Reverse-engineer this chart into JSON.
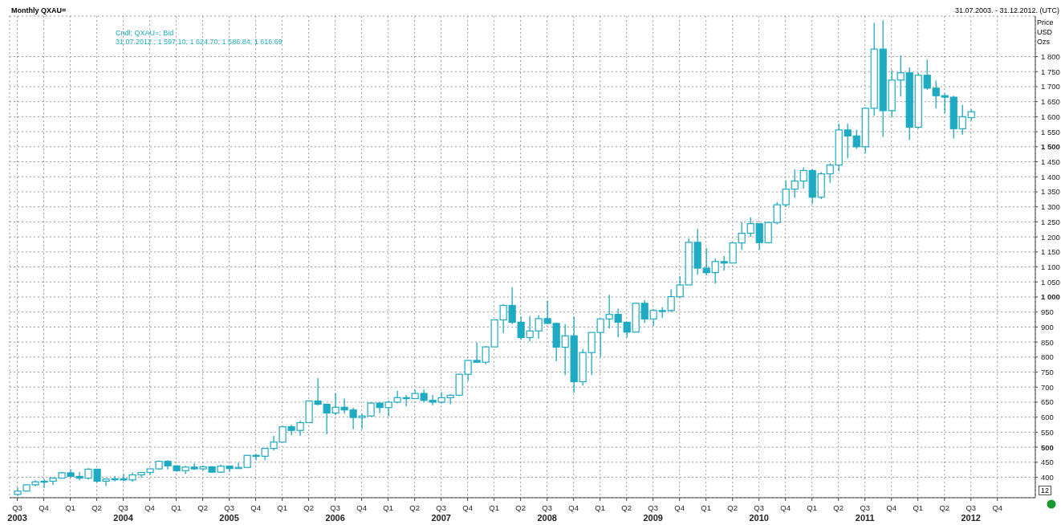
{
  "chart_data": {
    "type": "candlestick",
    "title": "Monthly QXAU=",
    "subtitle": "31.07.2003. - 31.12.2012. (UTC)",
    "ylabel": "Price\nUSD\nOzs",
    "annotations": [
      "Cndl; QXAU=; Bid",
      "31.07.2012 ; 1 597.10; 1 624.70; 1 586.84; 1 616.69",
      "12"
    ],
    "color": "#1eaac2",
    "grid": true,
    "x": [
      "2003-07",
      "2003-08",
      "2003-09",
      "2003-10",
      "2003-11",
      "2003-12",
      "2004-01",
      "2004-02",
      "2004-03",
      "2004-04",
      "2004-05",
      "2004-06",
      "2004-07",
      "2004-08",
      "2004-09",
      "2004-10",
      "2004-11",
      "2004-12",
      "2005-01",
      "2005-02",
      "2005-03",
      "2005-04",
      "2005-05",
      "2005-06",
      "2005-07",
      "2005-08",
      "2005-09",
      "2005-10",
      "2005-11",
      "2005-12",
      "2006-01",
      "2006-02",
      "2006-03",
      "2006-04",
      "2006-05",
      "2006-06",
      "2006-07",
      "2006-08",
      "2006-09",
      "2006-10",
      "2006-11",
      "2006-12",
      "2007-01",
      "2007-02",
      "2007-03",
      "2007-04",
      "2007-05",
      "2007-06",
      "2007-07",
      "2007-08",
      "2007-09",
      "2007-10",
      "2007-11",
      "2007-12",
      "2008-01",
      "2008-02",
      "2008-03",
      "2008-04",
      "2008-05",
      "2008-06",
      "2008-07",
      "2008-08",
      "2008-09",
      "2008-10",
      "2008-11",
      "2008-12",
      "2009-01",
      "2009-02",
      "2009-03",
      "2009-04",
      "2009-05",
      "2009-06",
      "2009-07",
      "2009-08",
      "2009-09",
      "2009-10",
      "2009-11",
      "2009-12",
      "2010-01",
      "2010-02",
      "2010-03",
      "2010-04",
      "2010-05",
      "2010-06",
      "2010-07",
      "2010-08",
      "2010-09",
      "2010-10",
      "2010-11",
      "2010-12",
      "2011-01",
      "2011-02",
      "2011-03",
      "2011-04",
      "2011-05",
      "2011-06",
      "2011-07",
      "2011-08",
      "2011-09",
      "2011-10",
      "2011-11",
      "2011-12",
      "2012-01",
      "2012-02",
      "2012-03",
      "2012-04",
      "2012-05",
      "2012-06",
      "2012-07"
    ],
    "ohlc": [
      [
        343,
        366,
        338,
        354
      ],
      [
        354,
        376,
        354,
        375
      ],
      [
        375,
        390,
        370,
        385
      ],
      [
        385,
        395,
        365,
        387
      ],
      [
        387,
        400,
        375,
        397
      ],
      [
        397,
        418,
        397,
        415
      ],
      [
        415,
        427,
        399,
        403
      ],
      [
        403,
        418,
        390,
        397
      ],
      [
        397,
        430,
        392,
        427
      ],
      [
        427,
        428,
        382,
        387
      ],
      [
        387,
        397,
        371,
        394
      ],
      [
        394,
        404,
        386,
        395
      ],
      [
        395,
        410,
        387,
        391
      ],
      [
        391,
        416,
        385,
        408
      ],
      [
        408,
        417,
        398,
        416
      ],
      [
        416,
        429,
        409,
        428
      ],
      [
        428,
        456,
        425,
        453
      ],
      [
        453,
        457,
        426,
        438
      ],
      [
        438,
        440,
        418,
        422
      ],
      [
        422,
        438,
        411,
        434
      ],
      [
        434,
        447,
        424,
        428
      ],
      [
        428,
        438,
        422,
        435
      ],
      [
        435,
        436,
        415,
        417
      ],
      [
        417,
        442,
        414,
        437
      ],
      [
        437,
        438,
        418,
        429
      ],
      [
        429,
        448,
        428,
        433
      ],
      [
        433,
        474,
        433,
        473
      ],
      [
        473,
        477,
        456,
        470
      ],
      [
        470,
        497,
        456,
        496
      ],
      [
        496,
        538,
        489,
        517
      ],
      [
        517,
        571,
        517,
        568
      ],
      [
        568,
        575,
        540,
        556
      ],
      [
        556,
        588,
        538,
        582
      ],
      [
        582,
        654,
        582,
        654
      ],
      [
        654,
        730,
        640,
        643
      ],
      [
        643,
        645,
        543,
        614
      ],
      [
        614,
        680,
        607,
        633
      ],
      [
        633,
        662,
        612,
        624
      ],
      [
        624,
        632,
        560,
        599
      ],
      [
        599,
        612,
        560,
        604
      ],
      [
        604,
        650,
        603,
        647
      ],
      [
        647,
        650,
        613,
        632
      ],
      [
        632,
        655,
        603,
        650
      ],
      [
        650,
        688,
        646,
        665
      ],
      [
        665,
        674,
        636,
        662
      ],
      [
        662,
        692,
        662,
        679
      ],
      [
        679,
        692,
        649,
        656
      ],
      [
        656,
        674,
        640,
        650
      ],
      [
        650,
        683,
        645,
        665
      ],
      [
        665,
        676,
        643,
        673
      ],
      [
        673,
        744,
        670,
        743
      ],
      [
        743,
        790,
        720,
        789
      ],
      [
        789,
        848,
        780,
        783
      ],
      [
        783,
        836,
        776,
        834
      ],
      [
        834,
        924,
        834,
        924
      ],
      [
        924,
        975,
        880,
        972
      ],
      [
        972,
        1032,
        910,
        916
      ],
      [
        916,
        936,
        857,
        865
      ],
      [
        865,
        937,
        852,
        887
      ],
      [
        887,
        940,
        861,
        928
      ],
      [
        928,
        988,
        910,
        912
      ],
      [
        912,
        915,
        786,
        833
      ],
      [
        833,
        910,
        740,
        871
      ],
      [
        871,
        935,
        681,
        718
      ],
      [
        718,
        827,
        705,
        815
      ],
      [
        815,
        882,
        740,
        882
      ],
      [
        882,
        928,
        800,
        927
      ],
      [
        927,
        1007,
        895,
        942
      ],
      [
        942,
        962,
        866,
        916
      ],
      [
        916,
        917,
        865,
        883
      ],
      [
        883,
        982,
        883,
        979
      ],
      [
        979,
        990,
        914,
        927
      ],
      [
        927,
        960,
        904,
        955
      ],
      [
        955,
        966,
        930,
        955
      ],
      [
        955,
        1025,
        950,
        1001
      ],
      [
        1001,
        1070,
        1000,
        1040
      ],
      [
        1040,
        1195,
        1040,
        1182
      ],
      [
        1182,
        1227,
        1075,
        1096
      ],
      [
        1096,
        1162,
        1072,
        1081
      ],
      [
        1081,
        1129,
        1045,
        1118
      ],
      [
        1118,
        1137,
        1088,
        1113
      ],
      [
        1113,
        1182,
        1112,
        1180
      ],
      [
        1180,
        1249,
        1157,
        1212
      ],
      [
        1212,
        1265,
        1200,
        1244
      ],
      [
        1244,
        1245,
        1157,
        1181
      ],
      [
        1181,
        1250,
        1178,
        1248
      ],
      [
        1248,
        1316,
        1242,
        1307
      ],
      [
        1307,
        1388,
        1300,
        1359
      ],
      [
        1359,
        1425,
        1330,
        1386
      ],
      [
        1386,
        1431,
        1361,
        1421
      ],
      [
        1421,
        1425,
        1309,
        1332
      ],
      [
        1332,
        1416,
        1326,
        1410
      ],
      [
        1410,
        1445,
        1380,
        1439
      ],
      [
        1439,
        1576,
        1418,
        1556
      ],
      [
        1556,
        1577,
        1462,
        1536
      ],
      [
        1536,
        1556,
        1493,
        1500
      ],
      [
        1500,
        1632,
        1478,
        1628
      ],
      [
        1628,
        1912,
        1603,
        1825
      ],
      [
        1825,
        1921,
        1532,
        1620
      ],
      [
        1620,
        1755,
        1600,
        1722
      ],
      [
        1722,
        1804,
        1667,
        1746
      ],
      [
        1746,
        1764,
        1523,
        1565
      ],
      [
        1565,
        1745,
        1561,
        1738
      ],
      [
        1738,
        1790,
        1690,
        1695
      ],
      [
        1695,
        1720,
        1628,
        1670
      ],
      [
        1670,
        1677,
        1611,
        1665
      ],
      [
        1665,
        1670,
        1527,
        1560
      ],
      [
        1560,
        1640,
        1540,
        1600
      ],
      [
        1597.1,
        1624.7,
        1586.84,
        1616.69
      ]
    ],
    "xlim": [
      "2003-06-05",
      "2013-02-10"
    ],
    "xticks": [
      {
        "value": "2003-07",
        "label": "Q3\n2003"
      },
      {
        "value": "2003-10",
        "label": "Q4"
      },
      {
        "value": "2004-01",
        "label": "Q1"
      },
      {
        "value": "2004-04",
        "label": "Q2"
      },
      {
        "value": "2004-07",
        "label": "Q3\n2004"
      },
      {
        "value": "2004-10",
        "label": "Q4"
      },
      {
        "value": "2005-01",
        "label": "Q1"
      },
      {
        "value": "2005-04",
        "label": "Q2"
      },
      {
        "value": "2005-07",
        "label": "Q3\n2005"
      },
      {
        "value": "2005-10",
        "label": "Q4"
      },
      {
        "value": "2006-01",
        "label": "Q1"
      },
      {
        "value": "2006-04",
        "label": "Q2"
      },
      {
        "value": "2006-07",
        "label": "Q3\n2006"
      },
      {
        "value": "2006-10",
        "label": "Q4"
      },
      {
        "value": "2007-01",
        "label": "Q1"
      },
      {
        "value": "2007-04",
        "label": "Q2"
      },
      {
        "value": "2007-07",
        "label": "Q3\n2007"
      },
      {
        "value": "2007-10",
        "label": "Q4"
      },
      {
        "value": "2008-01",
        "label": "Q1"
      },
      {
        "value": "2008-04",
        "label": "Q2"
      },
      {
        "value": "2008-07",
        "label": "Q3\n2008"
      },
      {
        "value": "2008-10",
        "label": "Q4"
      },
      {
        "value": "2009-01",
        "label": "Q1"
      },
      {
        "value": "2009-04",
        "label": "Q2"
      },
      {
        "value": "2009-07",
        "label": "Q3\n2009"
      },
      {
        "value": "2009-10",
        "label": "Q4"
      },
      {
        "value": "2010-01",
        "label": "Q1"
      },
      {
        "value": "2010-04",
        "label": "Q2"
      },
      {
        "value": "2010-07",
        "label": "Q3\n2010"
      },
      {
        "value": "2010-10",
        "label": "Q4"
      },
      {
        "value": "2011-01",
        "label": "Q1"
      },
      {
        "value": "2011-04",
        "label": "Q2"
      },
      {
        "value": "2011-07",
        "label": "Q3\n2011"
      },
      {
        "value": "2011-10",
        "label": "Q4"
      },
      {
        "value": "2012-01",
        "label": "Q1"
      },
      {
        "value": "2012-04",
        "label": "Q2"
      },
      {
        "value": "2012-07",
        "label": "Q3\n2012"
      },
      {
        "value": "2012-10",
        "label": "Q4"
      }
    ],
    "ylim": [
      332,
      1935
    ],
    "yticks": [
      400,
      450,
      500,
      550,
      600,
      650,
      700,
      750,
      800,
      850,
      900,
      950,
      {
        "value": 1000,
        "label": "1 000"
      },
      {
        "value": 1050,
        "label": "1 050"
      },
      {
        "value": 1100,
        "label": "1 100"
      },
      {
        "value": 1150,
        "label": "1 150"
      },
      {
        "value": 1200,
        "label": "1 200"
      },
      {
        "value": 1250,
        "label": "1 250"
      },
      {
        "value": 1300,
        "label": "1 300"
      },
      {
        "value": 1350,
        "label": "1 350"
      },
      {
        "value": 1400,
        "label": "1 400"
      },
      {
        "value": 1450,
        "label": "1 450"
      },
      {
        "value": 1500,
        "label": "1 500"
      },
      {
        "value": 1550,
        "label": "1 550"
      },
      {
        "value": 1600,
        "label": "1 600"
      },
      {
        "value": 1650,
        "label": "1 650"
      },
      {
        "value": 1700,
        "label": "1 700"
      },
      {
        "value": 1750,
        "label": "1 750"
      },
      {
        "value": 1800,
        "label": "1 800"
      }
    ]
  }
}
